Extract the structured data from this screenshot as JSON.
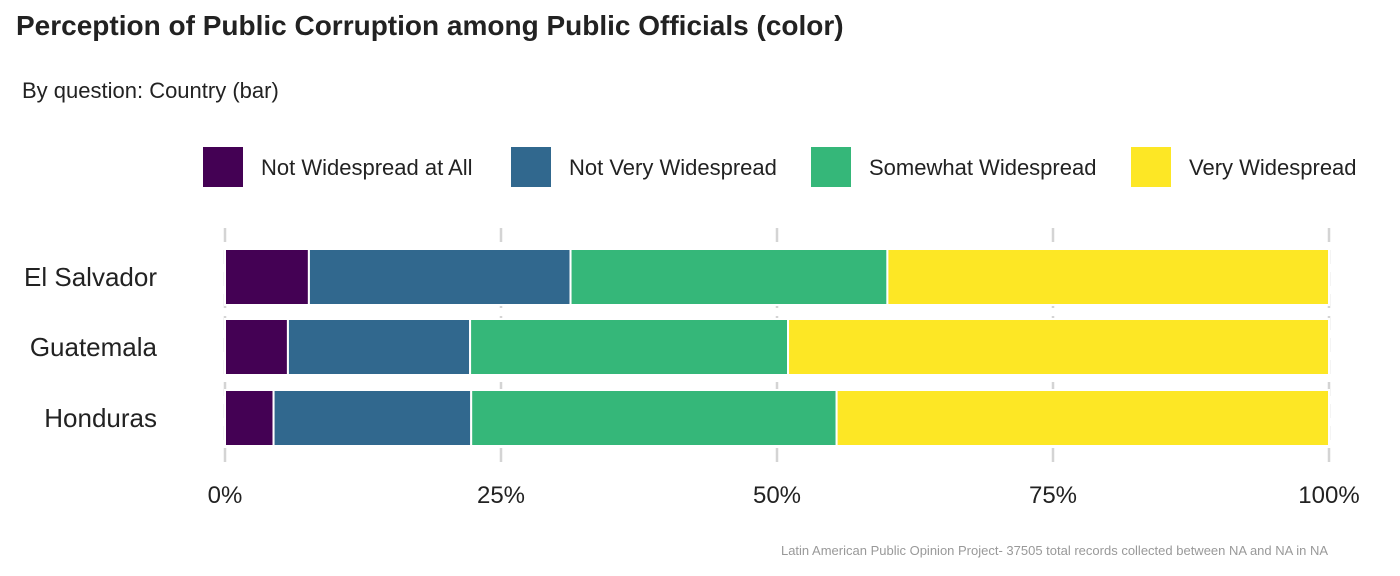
{
  "header": {
    "title": "Perception of Public Corruption among Public Officials (color)",
    "subtitle": "By question: Country (bar)"
  },
  "caption": "Latin American Public Opinion Project- 37505 total records collected between NA and NA in  NA",
  "chart_data": {
    "type": "bar",
    "orientation": "horizontal",
    "stacked": true,
    "normalized": true,
    "categories": [
      "El Salvador",
      "Guatemala",
      "Honduras"
    ],
    "series": [
      {
        "name": "Not Widespread at All",
        "color": "#440154",
        "values": [
          7.6,
          5.7,
          4.4
        ]
      },
      {
        "name": "Not Very Widespread",
        "color": "#31688E",
        "values": [
          23.7,
          16.5,
          17.9
        ]
      },
      {
        "name": "Somewhat Widespread",
        "color": "#35B779",
        "values": [
          28.7,
          28.8,
          33.1
        ]
      },
      {
        "name": "Very Widespread",
        "color": "#FDE725",
        "values": [
          40.0,
          49.0,
          44.6
        ]
      }
    ],
    "xlim": [
      0,
      100
    ],
    "x_ticks": [
      "0%",
      "25%",
      "50%",
      "75%",
      "100%"
    ],
    "legend_position": "top",
    "grid": "vertical"
  }
}
